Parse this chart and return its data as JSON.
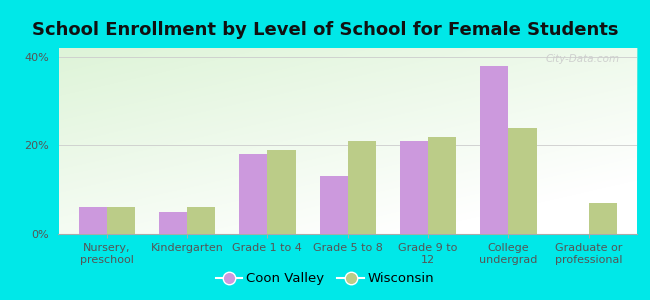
{
  "title": "School Enrollment by Level of School for Female Students",
  "categories": [
    "Nursery,\npreschool",
    "Kindergarten",
    "Grade 1 to 4",
    "Grade 5 to 8",
    "Grade 9 to\n12",
    "College\nundergrad",
    "Graduate or\nprofessional"
  ],
  "coon_valley": [
    6.0,
    5.0,
    18.0,
    13.0,
    21.0,
    38.0,
    0.0
  ],
  "wisconsin": [
    6.0,
    6.0,
    19.0,
    21.0,
    22.0,
    24.0,
    7.0
  ],
  "coon_valley_color": "#cc99dd",
  "wisconsin_color": "#bbcc88",
  "background_outer": "#00e8e8",
  "bar_width": 0.35,
  "ylim": [
    0,
    42
  ],
  "yticks": [
    0,
    20,
    40
  ],
  "ytick_labels": [
    "0%",
    "20%",
    "40%"
  ],
  "watermark": "City-Data.com",
  "legend_label1": "Coon Valley",
  "legend_label2": "Wisconsin",
  "title_fontsize": 13,
  "tick_fontsize": 8,
  "legend_fontsize": 9.5
}
